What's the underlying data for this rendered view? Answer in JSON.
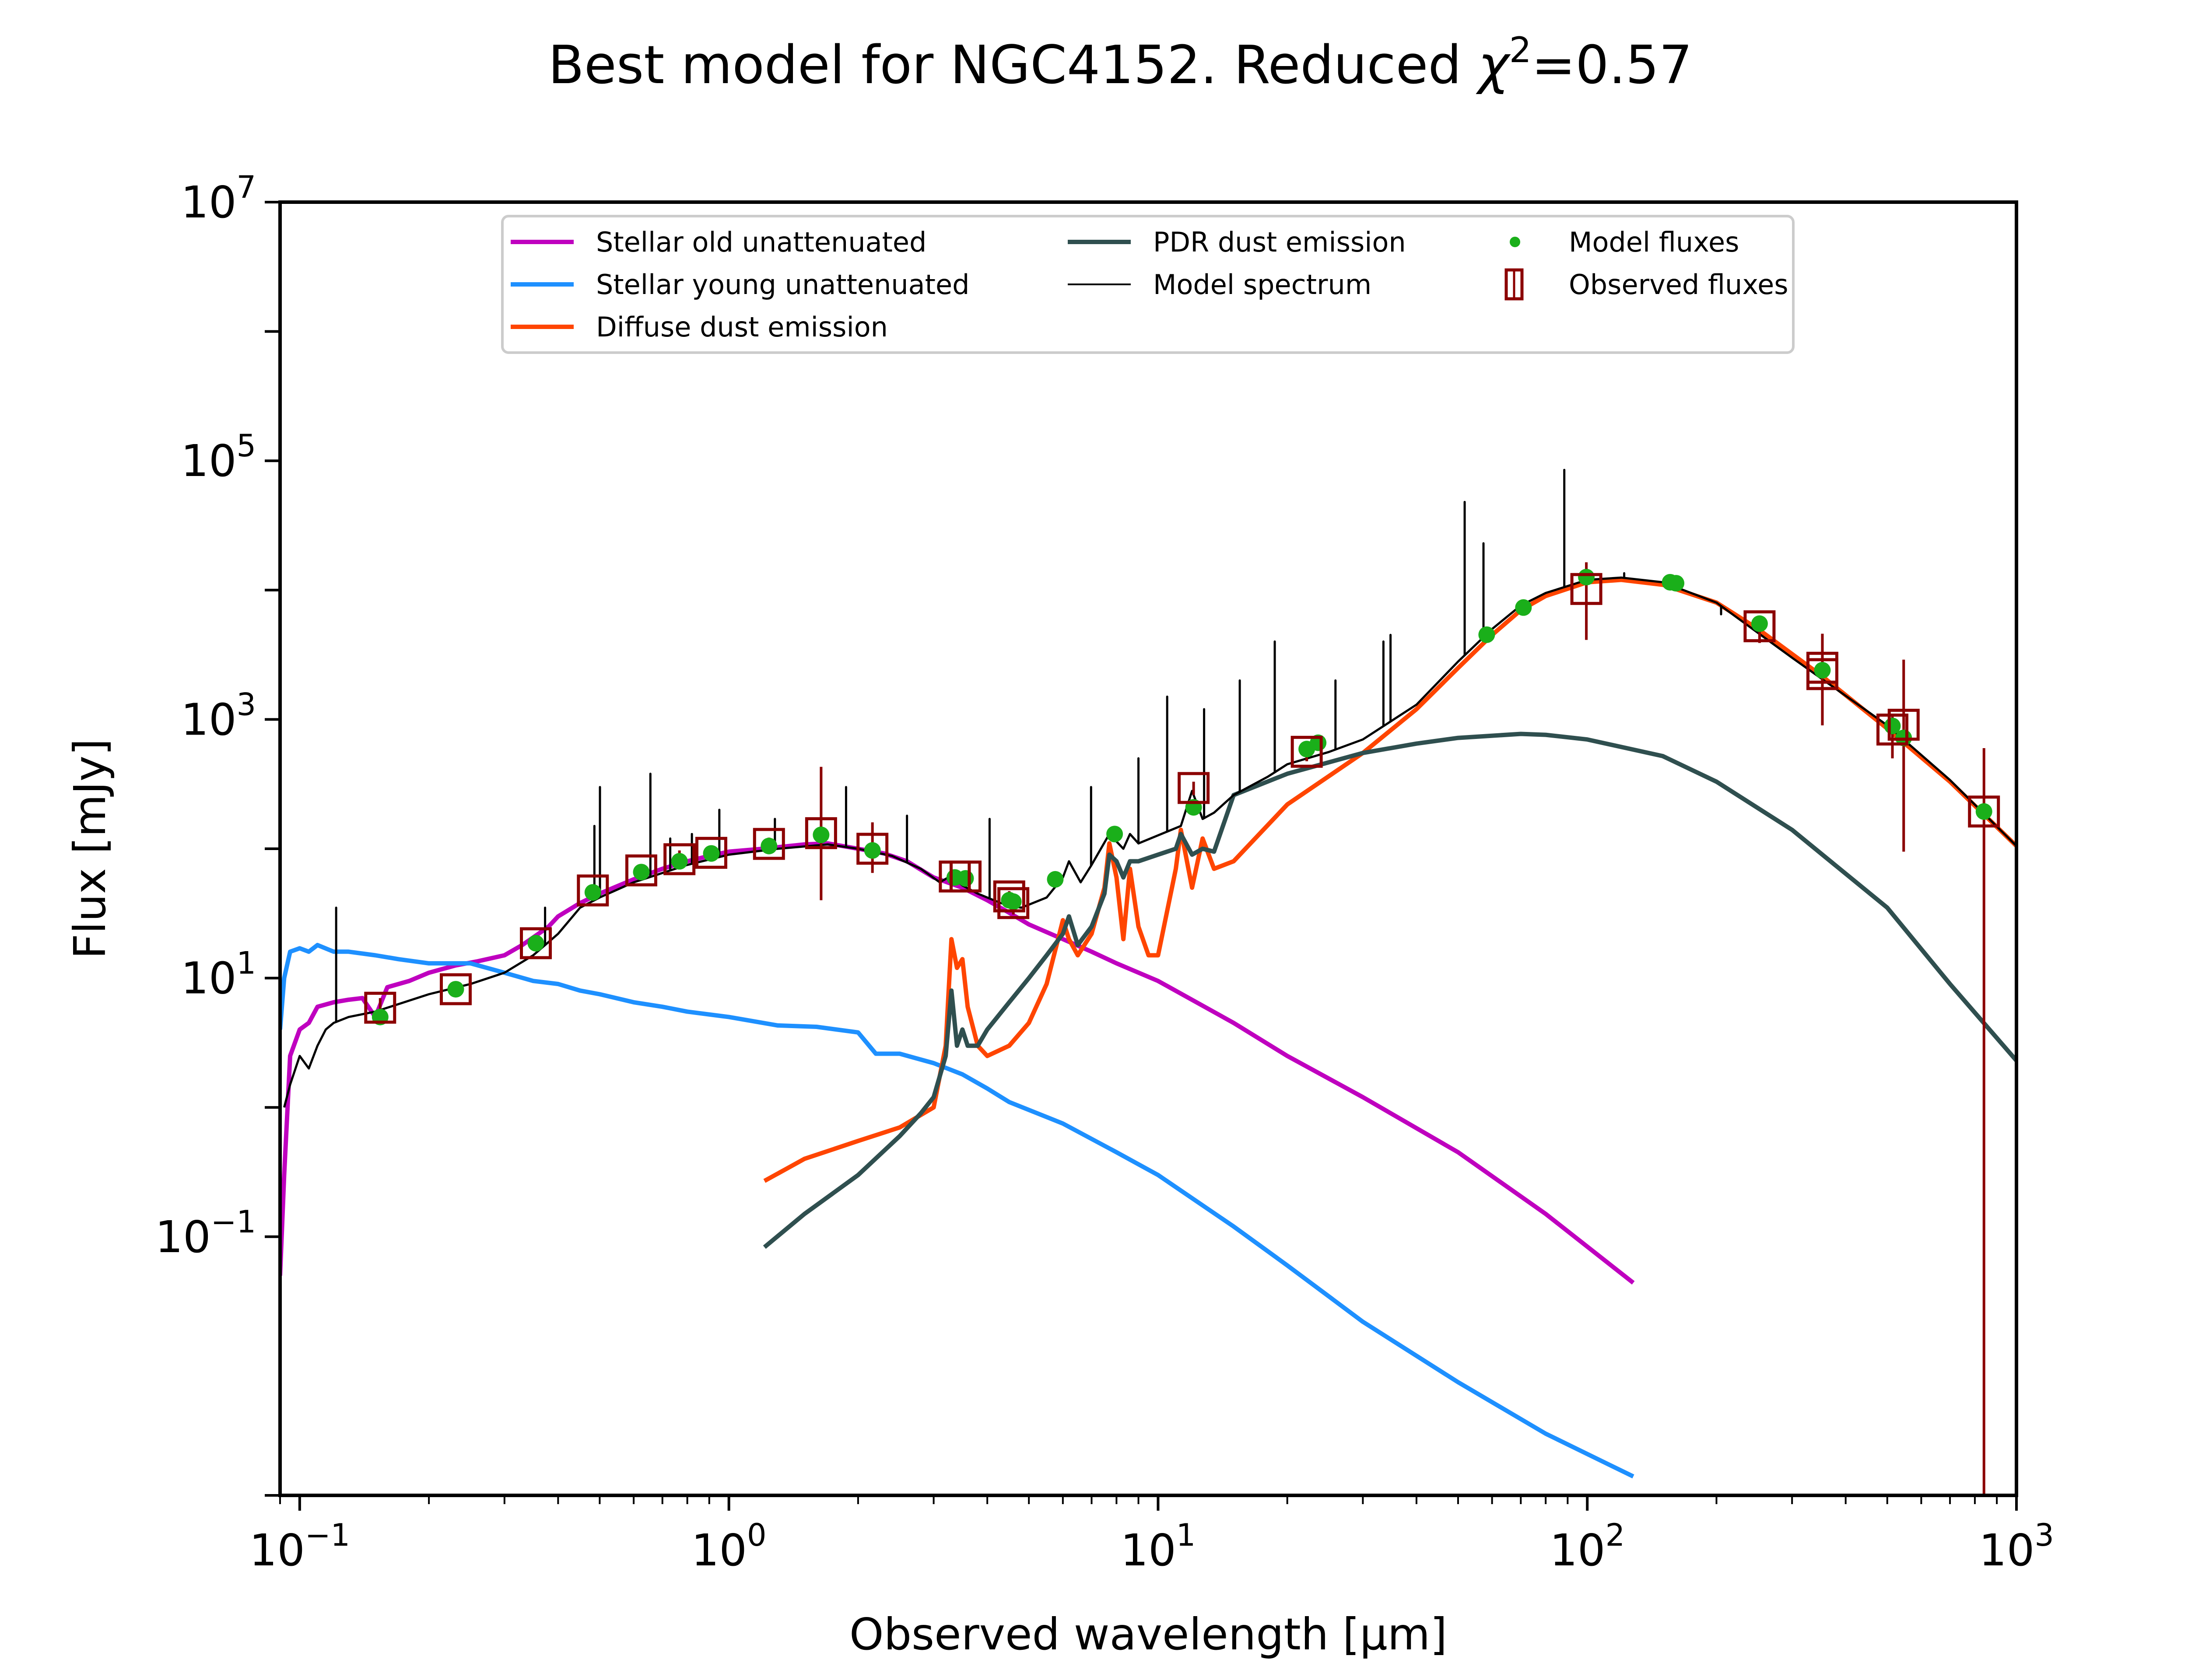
{
  "chart_data": {
    "type": "line",
    "title": "Best model for NGC4152. Reduced χ²=0.57",
    "title_parts": {
      "prefix": "Best model for NGC4152. Reduced ",
      "chi": "χ",
      "sup": "2",
      "suffix": "=0.57"
    },
    "xlabel": "Observed wavelength [μm]",
    "ylabel": "Flux [mJy]",
    "xscale": "log",
    "yscale": "log",
    "xlim": [
      0.09,
      1000
    ],
    "ylim": [
      0.001,
      10000000
    ],
    "grid": false,
    "legend_placement": "top-center",
    "x_ticks": [
      {
        "value": 0.1,
        "base": "10",
        "exp": "−1"
      },
      {
        "value": 1,
        "base": "10",
        "exp": "0"
      },
      {
        "value": 10,
        "base": "10",
        "exp": "1"
      },
      {
        "value": 100,
        "base": "10",
        "exp": "2"
      },
      {
        "value": 1000,
        "base": "10",
        "exp": "3"
      }
    ],
    "y_ticks": [
      {
        "value": 0.1,
        "base": "10",
        "exp": "−1"
      },
      {
        "value": 10,
        "base": "10",
        "exp": "1"
      },
      {
        "value": 1000,
        "base": "10",
        "exp": "3"
      },
      {
        "value": 100000,
        "base": "10",
        "exp": "5"
      },
      {
        "value": 10000000,
        "base": "10",
        "exp": "7"
      }
    ],
    "y_minor_tick_values": [
      0.001,
      1,
      100,
      10000,
      1000000
    ],
    "legend": [
      {
        "key": "stellar_old",
        "label": "Stellar old unattenuated",
        "kind": "line",
        "color": "#bf00bf"
      },
      {
        "key": "stellar_young",
        "label": "Stellar young unattenuated",
        "kind": "line",
        "color": "#1e90ff"
      },
      {
        "key": "diffuse_dust",
        "label": "Diffuse dust emission",
        "kind": "line",
        "color": "#ff4500"
      },
      {
        "key": "pdr_dust",
        "label": "PDR dust emission",
        "kind": "line",
        "color": "#2f4f4f"
      },
      {
        "key": "model_spectrum",
        "label": "Model spectrum",
        "kind": "thinline",
        "color": "#000000"
      },
      {
        "key": "model_fluxes",
        "label": "Model fluxes",
        "kind": "dot",
        "color": "#1aaf1a"
      },
      {
        "key": "observed_fluxes",
        "label": "Observed fluxes",
        "kind": "square",
        "color": "#8b0000"
      }
    ],
    "series": [
      {
        "name": "Stellar old unattenuated",
        "color": "#bf00bf",
        "x": [
          0.09,
          0.092,
          0.095,
          0.1,
          0.105,
          0.11,
          0.12,
          0.13,
          0.14,
          0.15,
          0.16,
          0.18,
          0.2,
          0.23,
          0.26,
          0.3,
          0.33,
          0.36,
          0.38,
          0.4,
          0.45,
          0.5,
          0.6,
          0.7,
          0.8,
          0.9,
          1.0,
          1.2,
          1.5,
          1.7,
          2.0,
          2.3,
          2.6,
          3.0,
          3.5,
          4.0,
          4.5,
          5.0,
          6.0,
          7.0,
          8.0,
          10,
          15,
          20,
          30,
          50,
          80,
          128
        ],
        "y": [
          0.05,
          0.3,
          2.5,
          4.0,
          4.5,
          6.0,
          6.5,
          6.8,
          7.0,
          5.0,
          8.5,
          9.5,
          11,
          12.5,
          13.5,
          15,
          18,
          22,
          25,
          30,
          38,
          45,
          58,
          70,
          80,
          88,
          95,
          100,
          108,
          110,
          100,
          92,
          80,
          60,
          50,
          40,
          32,
          26,
          20,
          16,
          13,
          9.5,
          4.5,
          2.5,
          1.2,
          0.45,
          0.15,
          0.044
        ]
      },
      {
        "name": "Stellar young unattenuated",
        "color": "#1e90ff",
        "x": [
          0.09,
          0.092,
          0.095,
          0.1,
          0.105,
          0.11,
          0.12,
          0.13,
          0.15,
          0.17,
          0.2,
          0.25,
          0.3,
          0.35,
          0.4,
          0.45,
          0.5,
          0.6,
          0.7,
          0.8,
          1.0,
          1.3,
          1.6,
          2.0,
          2.2,
          2.5,
          3.0,
          3.5,
          4.0,
          4.5,
          6.0,
          8.0,
          10,
          15,
          20,
          30,
          50,
          80,
          128
        ],
        "y": [
          4.0,
          10,
          16,
          17,
          16,
          18,
          16,
          16,
          15,
          14,
          13,
          13,
          11,
          9.5,
          9,
          8,
          7.5,
          6.5,
          6,
          5.5,
          5,
          4.3,
          4.2,
          3.8,
          2.6,
          2.6,
          2.2,
          1.8,
          1.4,
          1.1,
          0.75,
          0.45,
          0.3,
          0.12,
          0.06,
          0.022,
          0.0075,
          0.003,
          0.0014
        ]
      },
      {
        "name": "Diffuse dust emission",
        "color": "#ff4500",
        "x": [
          1.21,
          1.5,
          2.0,
          2.5,
          3.0,
          3.2,
          3.3,
          3.4,
          3.5,
          3.6,
          3.8,
          4.0,
          4.5,
          5.0,
          5.5,
          6.0,
          6.2,
          6.5,
          7.0,
          7.5,
          7.7,
          8.0,
          8.3,
          8.6,
          9.0,
          9.5,
          10,
          11,
          11.3,
          12,
          12.7,
          13.5,
          15,
          20,
          30,
          40,
          50,
          60,
          70,
          80,
          100,
          120,
          150,
          200,
          250,
          350,
          500,
          700,
          1000
        ],
        "y": [
          0.27,
          0.4,
          0.55,
          0.7,
          1.0,
          3.0,
          20,
          12,
          14,
          6,
          3.0,
          2.5,
          3.0,
          4.5,
          9,
          28,
          20,
          15,
          22,
          50,
          110,
          60,
          20,
          70,
          25,
          15,
          15,
          70,
          140,
          50,
          120,
          70,
          80,
          220,
          550,
          1200,
          2500,
          4500,
          7000,
          9000,
          11500,
          12000,
          11000,
          8000,
          5000,
          2200,
          850,
          330,
          105
        ]
      },
      {
        "name": "PDR dust emission",
        "color": "#2f4f4f",
        "x": [
          1.21,
          1.5,
          2.0,
          2.5,
          2.8,
          3.0,
          3.2,
          3.3,
          3.4,
          3.5,
          3.6,
          3.8,
          4.0,
          4.5,
          5.0,
          5.5,
          6.0,
          6.2,
          6.5,
          7.0,
          7.5,
          7.7,
          8.0,
          8.3,
          8.6,
          9.0,
          10,
          11,
          11.3,
          12,
          12.7,
          13.5,
          15,
          20,
          30,
          40,
          50,
          70,
          80,
          100,
          150,
          200,
          300,
          500,
          700,
          1000
        ],
        "y": [
          0.083,
          0.15,
          0.3,
          0.6,
          0.9,
          1.2,
          2.5,
          8.0,
          3.0,
          4.0,
          3.0,
          3.0,
          4.0,
          6.5,
          10,
          15,
          22,
          30,
          18,
          25,
          45,
          90,
          80,
          60,
          80,
          80,
          90,
          100,
          130,
          90,
          100,
          95,
          260,
          380,
          550,
          650,
          720,
          773,
          760,
          700,
          520,
          330,
          140,
          35,
          9,
          2.3
        ]
      },
      {
        "name": "Model spectrum",
        "color": "#000000",
        "x": [
          0.092,
          0.095,
          0.1,
          0.105,
          0.11,
          0.115,
          0.12,
          0.13,
          0.15,
          0.2,
          0.25,
          0.3,
          0.35,
          0.4,
          0.45,
          0.5,
          0.6,
          0.8,
          1.0,
          1.3,
          1.7,
          2.0,
          2.4,
          2.8,
          3.1,
          3.3,
          3.5,
          3.8,
          4.3,
          4.8,
          5.5,
          6.0,
          6.2,
          6.6,
          7.0,
          7.7,
          8.3,
          8.6,
          9.0,
          11.3,
          12,
          12.7,
          13.5,
          15,
          18,
          20,
          25,
          30,
          40,
          50,
          60,
          70,
          80,
          100,
          120,
          150,
          200,
          300,
          500,
          700,
          1000
        ],
        "y": [
          1.0,
          1.5,
          2.5,
          2.0,
          3.0,
          4.0,
          4.5,
          5.0,
          5.5,
          7.5,
          9.0,
          11,
          15,
          22,
          35,
          42,
          55,
          75,
          90,
          100,
          108,
          100,
          88,
          70,
          55,
          62,
          52,
          45,
          38,
          35,
          42,
          60,
          80,
          55,
          75,
          130,
          100,
          130,
          110,
          150,
          280,
          170,
          190,
          260,
          360,
          450,
          560,
          700,
          1300,
          2800,
          5000,
          7600,
          9500,
          12000,
          12500,
          11500,
          8000,
          3000,
          900,
          340,
          105
        ]
      }
    ],
    "emission_lines": [
      {
        "x": 0.1216,
        "peak": 35
      },
      {
        "x": 0.373,
        "peak": 35
      },
      {
        "x": 0.486,
        "peak": 150
      },
      {
        "x": 0.5007,
        "peak": 300
      },
      {
        "x": 0.6563,
        "peak": 380
      },
      {
        "x": 0.73,
        "peak": 120
      },
      {
        "x": 0.82,
        "peak": 130
      },
      {
        "x": 0.95,
        "peak": 200
      },
      {
        "x": 1.28,
        "peak": 170
      },
      {
        "x": 1.875,
        "peak": 300
      },
      {
        "x": 2.6,
        "peak": 180
      },
      {
        "x": 4.05,
        "peak": 170
      },
      {
        "x": 6.98,
        "peak": 300
      },
      {
        "x": 9.0,
        "peak": 500
      },
      {
        "x": 10.5,
        "peak": 1500
      },
      {
        "x": 12.8,
        "peak": 1200
      },
      {
        "x": 15.5,
        "peak": 2000
      },
      {
        "x": 18.7,
        "peak": 4000
      },
      {
        "x": 25.9,
        "peak": 2000
      },
      {
        "x": 33.5,
        "peak": 4000
      },
      {
        "x": 34.8,
        "peak": 4500
      },
      {
        "x": 51.8,
        "peak": 48000
      },
      {
        "x": 57.3,
        "peak": 23000
      },
      {
        "x": 88.4,
        "peak": 85000
      },
      {
        "x": 121.9,
        "peak": 13500
      },
      {
        "x": 157.7,
        "peak": 12500
      },
      {
        "x": 205,
        "peak": 6500
      }
    ],
    "model_fluxes": [
      {
        "x": 0.154,
        "y": 5.0
      },
      {
        "x": 0.231,
        "y": 8.2
      },
      {
        "x": 0.355,
        "y": 18.6
      },
      {
        "x": 0.482,
        "y": 46
      },
      {
        "x": 0.625,
        "y": 66
      },
      {
        "x": 0.767,
        "y": 80
      },
      {
        "x": 0.91,
        "y": 92
      },
      {
        "x": 1.24,
        "y": 105
      },
      {
        "x": 1.64,
        "y": 128
      },
      {
        "x": 2.16,
        "y": 97
      },
      {
        "x": 3.36,
        "y": 60
      },
      {
        "x": 3.56,
        "y": 59
      },
      {
        "x": 4.5,
        "y": 40
      },
      {
        "x": 4.6,
        "y": 39
      },
      {
        "x": 5.76,
        "y": 58
      },
      {
        "x": 7.92,
        "y": 130
      },
      {
        "x": 12.1,
        "y": 209
      },
      {
        "x": 22.2,
        "y": 590
      },
      {
        "x": 23.6,
        "y": 660
      },
      {
        "x": 58.3,
        "y": 4520
      },
      {
        "x": 71,
        "y": 7330
      },
      {
        "x": 99.5,
        "y": 12600
      },
      {
        "x": 156,
        "y": 11500
      },
      {
        "x": 161,
        "y": 11300
      },
      {
        "x": 252,
        "y": 5500
      },
      {
        "x": 353,
        "y": 2400
      },
      {
        "x": 514,
        "y": 890
      },
      {
        "x": 546,
        "y": 720
      },
      {
        "x": 840,
        "y": 194
      }
    ],
    "observed_fluxes": [
      {
        "x": 0.154,
        "y": 5.9,
        "err_lo": 5.0,
        "err_hi": 7.0
      },
      {
        "x": 0.231,
        "y": 8.2,
        "err_lo": 7.5,
        "err_hi": 9.0
      },
      {
        "x": 0.355,
        "y": 18.6,
        "err_lo": 16.5,
        "err_hi": 20.5
      },
      {
        "x": 0.482,
        "y": 47.6,
        "err_lo": 43,
        "err_hi": 52
      },
      {
        "x": 0.625,
        "y": 68,
        "err_lo": 59,
        "err_hi": 75
      },
      {
        "x": 0.767,
        "y": 83,
        "err_lo": 72,
        "err_hi": 97
      },
      {
        "x": 0.91,
        "y": 93,
        "err_lo": 83,
        "err_hi": 105
      },
      {
        "x": 1.24,
        "y": 109,
        "err_lo": 95,
        "err_hi": 122
      },
      {
        "x": 1.64,
        "y": 132,
        "err_lo": 40,
        "err_hi": 430
      },
      {
        "x": 2.16,
        "y": 100,
        "err_lo": 65,
        "err_hi": 160
      },
      {
        "x": 3.36,
        "y": 61,
        "err_lo": 55,
        "err_hi": 68
      },
      {
        "x": 3.56,
        "y": 61,
        "err_lo": 55,
        "err_hi": 67
      },
      {
        "x": 4.5,
        "y": 42.8,
        "err_lo": 39,
        "err_hi": 47
      },
      {
        "x": 4.6,
        "y": 38,
        "err_lo": 31,
        "err_hi": 43
      },
      {
        "x": 12.1,
        "y": 295,
        "err_lo": 260,
        "err_hi": 330
      },
      {
        "x": 22.2,
        "y": 562,
        "err_lo": 475,
        "err_hi": 640
      },
      {
        "x": 99.5,
        "y": 10200,
        "err_lo": 4120,
        "err_hi": 16400
      },
      {
        "x": 252,
        "y": 5250,
        "err_lo": 3900,
        "err_hi": 5700
      },
      {
        "x": 353,
        "y": 2510,
        "err_lo": 900,
        "err_hi": 4600
      },
      {
        "x": 353,
        "y": 2240,
        "err_lo": 900,
        "err_hi": 4600
      },
      {
        "x": 514,
        "y": 835,
        "err_lo": 500,
        "err_hi": 1050
      },
      {
        "x": 546,
        "y": 910,
        "err_lo": 95,
        "err_hi": 2900
      },
      {
        "x": 840,
        "y": 194,
        "err_lo": 0.001,
        "err_hi": 600
      }
    ]
  }
}
